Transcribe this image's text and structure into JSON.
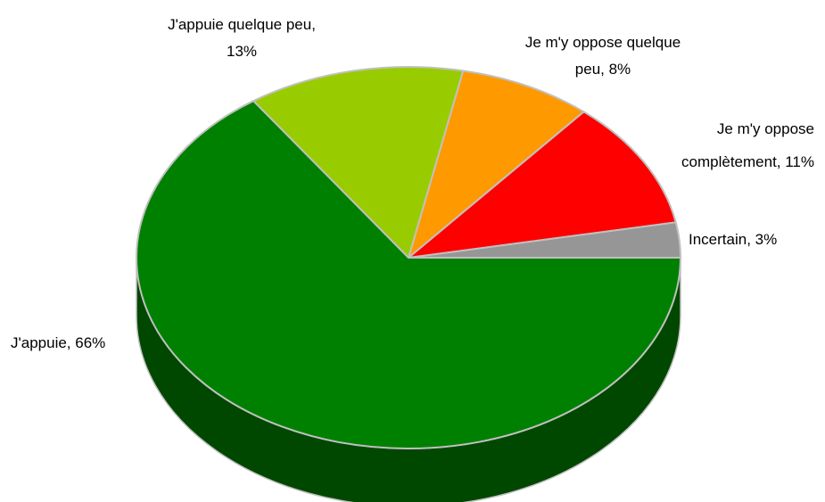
{
  "chart_data": {
    "type": "pie",
    "title": "",
    "slices": [
      {
        "label": "J'appuie",
        "value": 66,
        "label_text": "J'appuie, 66%",
        "color": "#008000",
        "side_color": "#004700"
      },
      {
        "label": "J'appuie quelque peu",
        "value": 13,
        "label_lines": [
          "J'appuie quelque peu,",
          "13%"
        ],
        "color": "#99cc00",
        "side_color": "#5b7a00"
      },
      {
        "label": "Je m'y oppose quelque peu",
        "value": 8,
        "label_lines": [
          "Je m'y oppose quelque",
          "peu, 8%"
        ],
        "color": "#ff9900",
        "side_color": "#995c00"
      },
      {
        "label": "Je m'y oppose complètement",
        "value": 11,
        "label_lines": [
          "Je m'y oppose",
          "complètement, 11%"
        ],
        "color": "#ff0000",
        "side_color": "#990000"
      },
      {
        "label": "Incertain",
        "value": 3,
        "label_text": "Incertain, 3%",
        "color": "#969696",
        "side_color": "#5a5a5a"
      }
    ],
    "style": "3d-pie",
    "edge_color": "#c0c0c0"
  }
}
